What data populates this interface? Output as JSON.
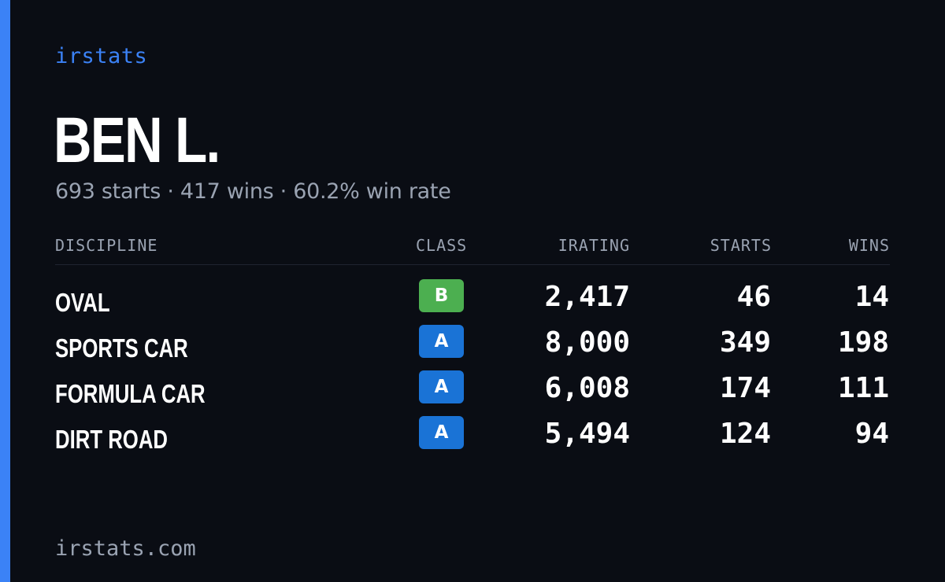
{
  "brand": "irstats",
  "driver": {
    "name": "BEN L.",
    "summary": "693 starts · 417 wins · 60.2% win rate"
  },
  "table": {
    "headers": {
      "discipline": "DISCIPLINE",
      "class": "CLASS",
      "irating": "IRATING",
      "starts": "STARTS",
      "wins": "WINS"
    },
    "rows": [
      {
        "discipline": "OVAL",
        "class": "B",
        "class_color": "#4caf50",
        "irating": "2,417",
        "starts": "46",
        "wins": "14"
      },
      {
        "discipline": "SPORTS CAR",
        "class": "A",
        "class_color": "#1a73d6",
        "irating": "8,000",
        "starts": "349",
        "wins": "198"
      },
      {
        "discipline": "FORMULA CAR",
        "class": "A",
        "class_color": "#1a73d6",
        "irating": "6,008",
        "starts": "174",
        "wins": "111"
      },
      {
        "discipline": "DIRT ROAD",
        "class": "A",
        "class_color": "#1a73d6",
        "irating": "5,494",
        "starts": "124",
        "wins": "94"
      }
    ]
  },
  "footer": "irstats.com",
  "colors": {
    "background": "#0a0d14",
    "accent": "#3b82f6",
    "muted": "#9aa3b2"
  }
}
